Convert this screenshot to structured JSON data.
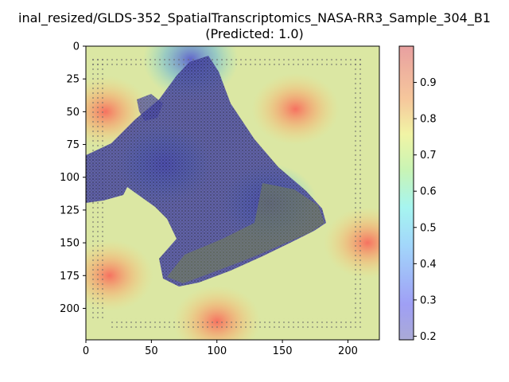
{
  "chart_data": {
    "type": "heatmap",
    "title_line1": "inal_resized/GLDS-352_SpatialTranscriptomics_NASA-RR3_Sample_304_B1",
    "title_line2": "(Predicted: 1.0)",
    "xlabel": "",
    "ylabel": "",
    "x_ticks": [
      "0",
      "50",
      "100",
      "150",
      "200"
    ],
    "x_tick_values": [
      0,
      50,
      100,
      150,
      200
    ],
    "y_ticks": [
      "0",
      "25",
      "50",
      "75",
      "100",
      "125",
      "150",
      "175",
      "200"
    ],
    "y_tick_values": [
      0,
      25,
      50,
      75,
      100,
      125,
      150,
      175,
      200
    ],
    "xlim": [
      0,
      224
    ],
    "ylim": [
      224,
      0
    ],
    "colorbar": {
      "ticks": [
        "0.9",
        "0.8",
        "0.7",
        "0.6",
        "0.5",
        "0.4",
        "0.3",
        "0.2"
      ],
      "tick_values": [
        0.9,
        0.8,
        0.7,
        0.6,
        0.5,
        0.4,
        0.3,
        0.2
      ],
      "range": [
        0.19,
        1.0
      ],
      "colormap": "jet",
      "alpha": 0.35
    },
    "overlay": "tissue section image with attention heatmap",
    "high_regions": [
      {
        "x": 160,
        "y": 48,
        "value": 0.85
      },
      {
        "x": 18,
        "y": 175,
        "value": 0.9
      },
      {
        "x": 15,
        "y": 50,
        "value": 0.8
      },
      {
        "x": 215,
        "y": 150,
        "value": 0.8
      },
      {
        "x": 100,
        "y": 210,
        "value": 0.75
      }
    ],
    "low_regions": [
      {
        "x": 80,
        "y": 10,
        "value": 0.25
      },
      {
        "x": 60,
        "y": 90,
        "value": 0.2
      },
      {
        "x": 140,
        "y": 120,
        "value": 0.3
      }
    ]
  }
}
